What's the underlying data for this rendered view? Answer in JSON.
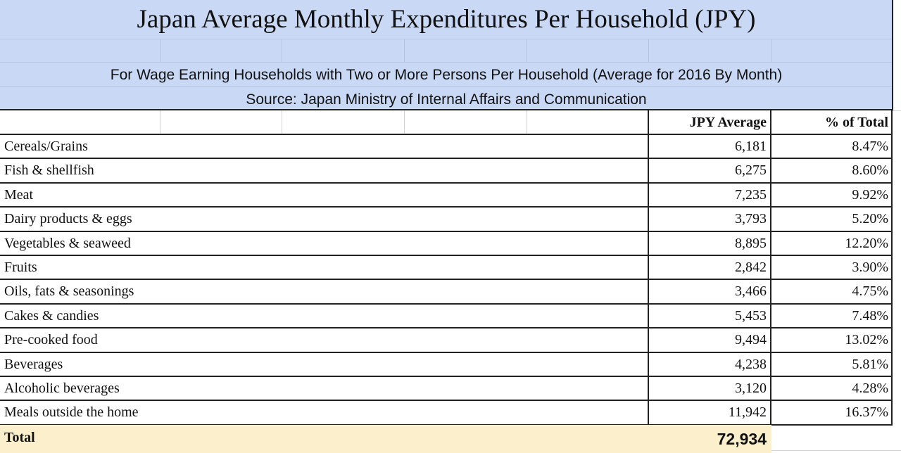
{
  "sheet": {
    "title": "Japan Average Monthly Expenditures Per Household (JPY)",
    "subtitle": "For Wage Earning Households with Two or More Persons Per Household (Average for 2016 By Month)",
    "source": "Source: Japan Ministry of Internal Affairs and Communication"
  },
  "table": {
    "headers": {
      "jpy": "JPY Average",
      "pct": "% of Total"
    },
    "rows": [
      {
        "label": "Cereals/Grains",
        "jpy": "6,181",
        "pct": "8.47%"
      },
      {
        "label": "Fish & shellfish",
        "jpy": "6,275",
        "pct": "8.60%"
      },
      {
        "label": "Meat",
        "jpy": "7,235",
        "pct": "9.92%"
      },
      {
        "label": "Dairy products & eggs",
        "jpy": "3,793",
        "pct": "5.20%"
      },
      {
        "label": "Vegetables & seaweed",
        "jpy": "8,895",
        "pct": "12.20%"
      },
      {
        "label": "Fruits",
        "jpy": "2,842",
        "pct": "3.90%"
      },
      {
        "label": "Oils, fats & seasonings",
        "jpy": "3,466",
        "pct": "4.75%"
      },
      {
        "label": "Cakes & candies",
        "jpy": "5,453",
        "pct": "7.48%"
      },
      {
        "label": "Pre-cooked food",
        "jpy": "9,494",
        "pct": "13.02%"
      },
      {
        "label": "Beverages",
        "jpy": "4,238",
        "pct": "5.81%"
      },
      {
        "label": "Alcoholic beverages",
        "jpy": "3,120",
        "pct": "4.28%"
      },
      {
        "label": "Meals outside the home",
        "jpy": "11,942",
        "pct": "16.37%"
      }
    ],
    "total": {
      "label": "Total",
      "jpy": "72,934"
    }
  },
  "colors": {
    "header_band": "#c9d9f5",
    "total_row": "#fcf0cc",
    "border": "#222222"
  }
}
